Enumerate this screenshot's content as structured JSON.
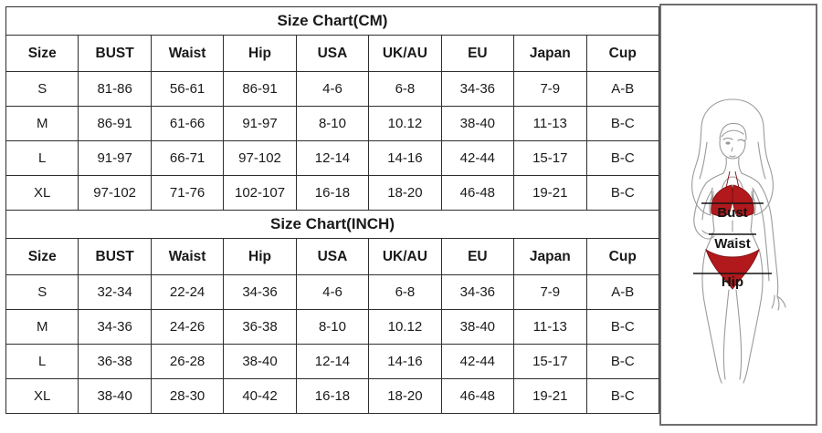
{
  "tables": [
    {
      "title": "Size Chart(CM)",
      "columns": [
        "Size",
        "BUST",
        "Waist",
        "Hip",
        "USA",
        "UK/AU",
        "EU",
        "Japan",
        "Cup"
      ],
      "rows": [
        [
          "S",
          "81-86",
          "56-61",
          "86-91",
          "4-6",
          "6-8",
          "34-36",
          "7-9",
          "A-B"
        ],
        [
          "M",
          "86-91",
          "61-66",
          "91-97",
          "8-10",
          "10.12",
          "38-40",
          "11-13",
          "B-C"
        ],
        [
          "L",
          "91-97",
          "66-71",
          "97-102",
          "12-14",
          "14-16",
          "42-44",
          "15-17",
          "B-C"
        ],
        [
          "XL",
          "97-102",
          "71-76",
          "102-107",
          "16-18",
          "18-20",
          "46-48",
          "19-21",
          "B-C"
        ]
      ]
    },
    {
      "title": "Size Chart(INCH)",
      "columns": [
        "Size",
        "BUST",
        "Waist",
        "Hip",
        "USA",
        "UK/AU",
        "EU",
        "Japan",
        "Cup"
      ],
      "rows": [
        [
          "S",
          "32-34",
          "22-24",
          "34-36",
          "4-6",
          "6-8",
          "34-36",
          "7-9",
          "A-B"
        ],
        [
          "M",
          "34-36",
          "24-26",
          "36-38",
          "8-10",
          "10.12",
          "38-40",
          "11-13",
          "B-C"
        ],
        [
          "L",
          "36-38",
          "26-28",
          "38-40",
          "12-14",
          "14-16",
          "42-44",
          "15-17",
          "B-C"
        ],
        [
          "XL",
          "38-40",
          "28-30",
          "40-42",
          "16-18",
          "18-20",
          "46-48",
          "19-21",
          "B-C"
        ]
      ]
    }
  ],
  "figure": {
    "bust_label": "Bust",
    "waist_label": "Waist",
    "hip_label": "Hip"
  },
  "colors": {
    "bikini_red": "#b2191c",
    "table_border": "#2e2e2e",
    "panel_border": "#6f6f6f",
    "figure_outline": "#9b9b9b",
    "measure_line": "#141414"
  }
}
